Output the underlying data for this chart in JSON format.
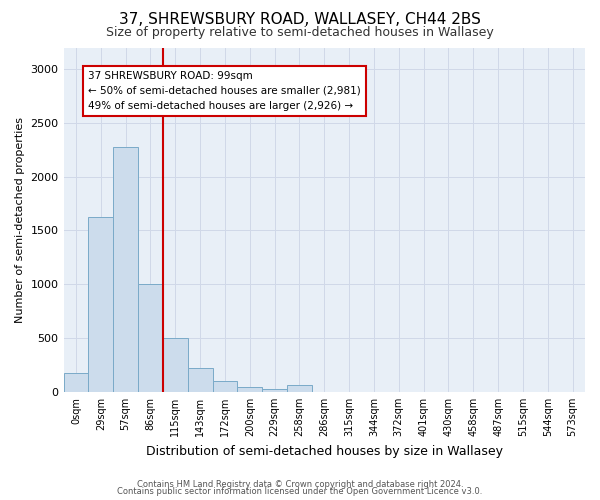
{
  "title": "37, SHREWSBURY ROAD, WALLASEY, CH44 2BS",
  "subtitle": "Size of property relative to semi-detached houses in Wallasey",
  "xlabel": "Distribution of semi-detached houses by size in Wallasey",
  "ylabel": "Number of semi-detached properties",
  "bin_labels": [
    "0sqm",
    "29sqm",
    "57sqm",
    "86sqm",
    "115sqm",
    "143sqm",
    "172sqm",
    "200sqm",
    "229sqm",
    "258sqm",
    "286sqm",
    "315sqm",
    "344sqm",
    "372sqm",
    "401sqm",
    "430sqm",
    "458sqm",
    "487sqm",
    "515sqm",
    "544sqm",
    "573sqm"
  ],
  "bar_values": [
    175,
    1625,
    2275,
    1000,
    500,
    225,
    100,
    50,
    30,
    60,
    0,
    0,
    0,
    0,
    0,
    0,
    0,
    0,
    0,
    0,
    0
  ],
  "bar_color": "#ccdcec",
  "bar_edge_color": "#7aaac8",
  "vline_x": 3.5,
  "vline_color": "#cc0000",
  "annotation_text": "37 SHREWSBURY ROAD: 99sqm\n← 50% of semi-detached houses are smaller (2,981)\n49% of semi-detached houses are larger (2,926) →",
  "annotation_box_color": "#ffffff",
  "annotation_box_edge_color": "#cc0000",
  "ylim": [
    0,
    3200
  ],
  "yticks": [
    0,
    500,
    1000,
    1500,
    2000,
    2500,
    3000
  ],
  "footer_line1": "Contains HM Land Registry data © Crown copyright and database right 2024.",
  "footer_line2": "Contains public sector information licensed under the Open Government Licence v3.0.",
  "title_fontsize": 11,
  "subtitle_fontsize": 9,
  "ylabel_fontsize": 8,
  "xlabel_fontsize": 9,
  "grid_color": "#d0d8e8",
  "background_color": "#e8eff7"
}
